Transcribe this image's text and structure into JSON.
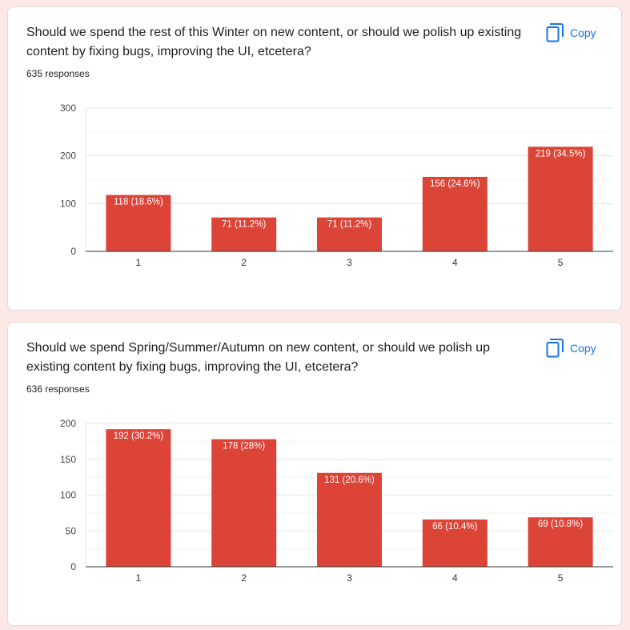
{
  "colors": {
    "bar": "#db4437",
    "accent": "#1a73e8",
    "grid": "#e8e8e8",
    "axis": "#333333",
    "page_bg": "#fce8e6"
  },
  "cards": [
    {
      "question": "Should we spend the rest of this Winter on new content, or should we polish up existing content by fixing bugs, improving the UI, etcetera?",
      "responses": "635 responses",
      "copy_label": "Copy",
      "copy_icon": "copy-icon"
    },
    {
      "question": "Should we spend Spring/Summer/Autumn on new content, or should we polish up existing content by fixing bugs, improving the UI, etcetera?",
      "responses": "636 responses",
      "copy_label": "Copy",
      "copy_icon": "copy-icon"
    }
  ],
  "chart_data": [
    {
      "type": "bar",
      "categories": [
        "1",
        "2",
        "3",
        "4",
        "5"
      ],
      "values": [
        118,
        71,
        71,
        156,
        219
      ],
      "labels": [
        "118 (18.6%)",
        "71 (11.2%)",
        "71 (11.2%)",
        "156 (24.6%)",
        "219 (34.5%)"
      ],
      "yticks": [
        0,
        100,
        200,
        300
      ],
      "ylim": [
        0,
        300
      ],
      "grid": true
    },
    {
      "type": "bar",
      "categories": [
        "1",
        "2",
        "3",
        "4",
        "5"
      ],
      "values": [
        192,
        178,
        131,
        66,
        69
      ],
      "labels": [
        "192 (30.2%)",
        "178 (28%)",
        "131 (20.6%)",
        "66 (10.4%)",
        "69 (10.8%)"
      ],
      "yticks": [
        0,
        50,
        100,
        150,
        200
      ],
      "ylim": [
        0,
        200
      ],
      "grid": true
    }
  ]
}
